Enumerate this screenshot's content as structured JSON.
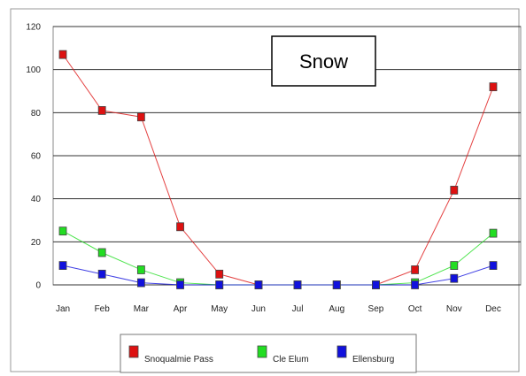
{
  "chart_data": {
    "type": "line",
    "title": "Snow",
    "xlabel": "",
    "ylabel": "",
    "categories": [
      "Jan",
      "Feb",
      "Mar",
      "Apr",
      "May",
      "Jun",
      "Jul",
      "Aug",
      "Sep",
      "Oct",
      "Nov",
      "Dec"
    ],
    "ylim": [
      0,
      120
    ],
    "yticks": [
      0,
      20,
      40,
      60,
      80,
      100,
      120
    ],
    "grid": true,
    "legend_position": "bottom",
    "series": [
      {
        "name": "Snoqualmie Pass",
        "color": "#dd1111",
        "values": [
          107,
          81,
          78,
          27,
          5,
          0,
          0,
          0,
          0,
          7,
          44,
          92
        ]
      },
      {
        "name": "Cle Elum",
        "color": "#22dd22",
        "values": [
          25,
          15,
          7,
          1,
          0,
          0,
          0,
          0,
          0,
          1,
          9,
          24
        ]
      },
      {
        "name": "Ellensburg",
        "color": "#1111dd",
        "values": [
          9,
          5,
          1,
          0,
          0,
          0,
          0,
          0,
          0,
          0,
          3,
          9
        ]
      }
    ]
  }
}
